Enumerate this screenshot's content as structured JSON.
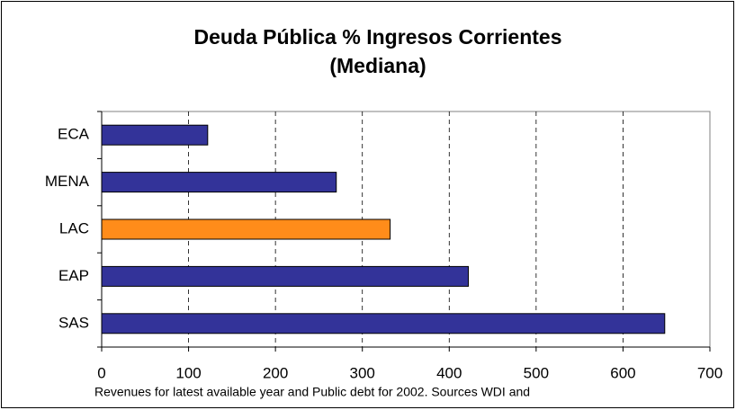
{
  "chart_data": {
    "type": "barh",
    "title": "Deuda Pública % Ingresos Corrientes",
    "subtitle": "(Mediana)",
    "categories": [
      "ECA",
      "MENA",
      "LAC",
      "EAP",
      "SAS"
    ],
    "values": [
      122,
      270,
      332,
      422,
      648
    ],
    "colors": [
      "#333399",
      "#333399",
      "#ff8c1a",
      "#333399",
      "#333399"
    ],
    "xlim": [
      0,
      700
    ],
    "xticks": [
      0,
      100,
      200,
      300,
      400,
      500,
      600,
      700
    ],
    "grid": true,
    "footnote": "Revenues for latest available year and Public debt for 2002. Sources WDI and"
  }
}
